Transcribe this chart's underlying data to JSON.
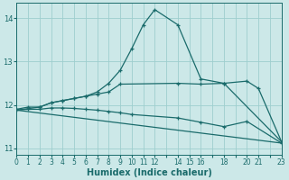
{
  "xlabel": "Humidex (Indice chaleur)",
  "ylabel": "",
  "bg_color": "#cce8e8",
  "grid_color": "#9ecece",
  "line_color": "#1a6b6b",
  "xlim": [
    0,
    23
  ],
  "ylim": [
    10.85,
    14.35
  ],
  "xticks_labeled": [
    0,
    1,
    2,
    3,
    4,
    5,
    6,
    7,
    8,
    9,
    10,
    11,
    12,
    14,
    15,
    16,
    18,
    20,
    21,
    23
  ],
  "xticks_all": [
    0,
    1,
    2,
    3,
    4,
    5,
    6,
    7,
    8,
    9,
    10,
    11,
    12,
    13,
    14,
    15,
    16,
    17,
    18,
    19,
    20,
    21,
    22,
    23
  ],
  "yticks": [
    11,
    12,
    13,
    14
  ],
  "series": [
    {
      "x": [
        0,
        1,
        2,
        3,
        4,
        5,
        6,
        7,
        8,
        9,
        10,
        11,
        12,
        14,
        16,
        18,
        20,
        21,
        23
      ],
      "y": [
        11.9,
        11.95,
        11.95,
        12.05,
        12.1,
        12.15,
        12.2,
        12.3,
        12.5,
        12.8,
        13.3,
        13.85,
        14.2,
        13.85,
        12.6,
        12.5,
        12.55,
        12.38,
        11.15
      ],
      "marker": "+"
    },
    {
      "x": [
        0,
        2,
        3,
        4,
        5,
        6,
        7,
        8,
        9,
        14,
        16,
        18,
        23
      ],
      "y": [
        11.88,
        11.95,
        12.05,
        12.1,
        12.15,
        12.2,
        12.25,
        12.3,
        12.48,
        12.5,
        12.48,
        12.5,
        11.15
      ],
      "marker": "+"
    },
    {
      "x": [
        0,
        1,
        2,
        3,
        4,
        5,
        6,
        7,
        8,
        9,
        10,
        14,
        16,
        18,
        20,
        23
      ],
      "y": [
        11.88,
        11.9,
        11.9,
        11.93,
        11.93,
        11.92,
        11.9,
        11.88,
        11.85,
        11.82,
        11.78,
        11.7,
        11.6,
        11.5,
        11.62,
        11.12
      ],
      "marker": "+"
    },
    {
      "x": [
        0,
        23
      ],
      "y": [
        11.88,
        11.12
      ],
      "marker": null
    }
  ]
}
